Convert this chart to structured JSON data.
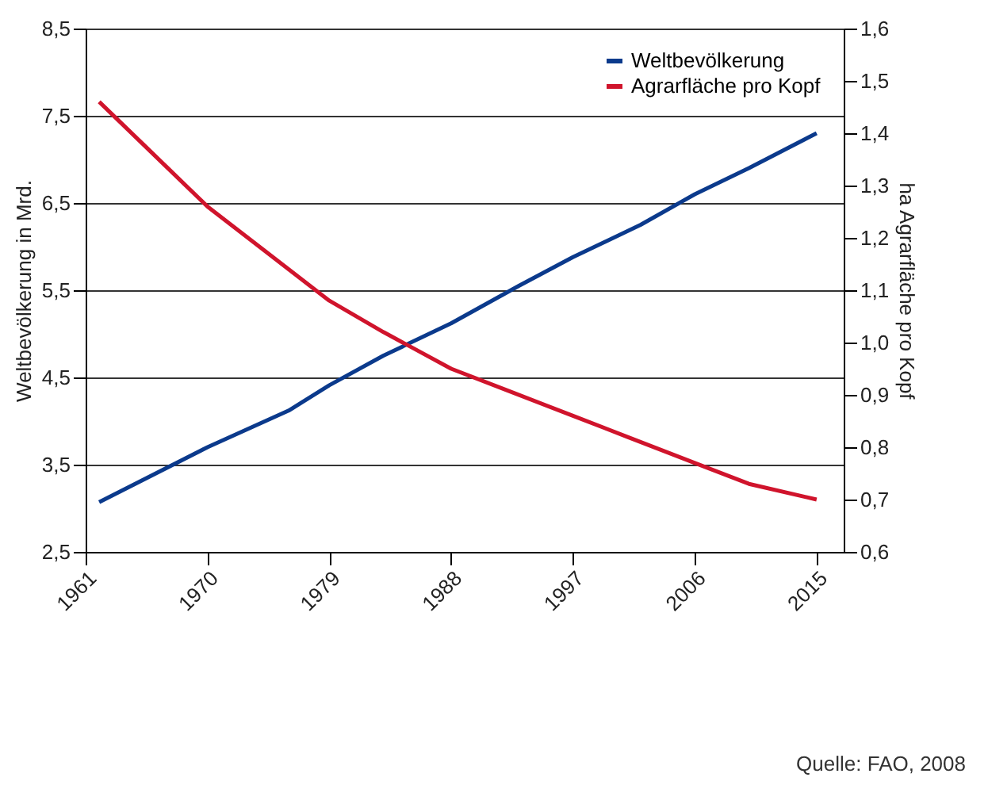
{
  "chart_data": {
    "type": "line",
    "ylabel": "Weltbevölkerung in Mrd.",
    "y2label": "ha Agrarfläche pro Kopf",
    "xlim": [
      1961,
      2017
    ],
    "xticks": [
      1961,
      1970,
      1979,
      1988,
      1997,
      2006,
      2015
    ],
    "ylim": [
      2.5,
      8.5
    ],
    "yticks": [
      {
        "value": 2.5,
        "label": "2,5"
      },
      {
        "value": 3.5,
        "label": "3,5"
      },
      {
        "value": 4.5,
        "label": "4,5"
      },
      {
        "value": 5.5,
        "label": "5,5"
      },
      {
        "value": 6.5,
        "label": "6,5"
      },
      {
        "value": 7.5,
        "label": "7,5"
      },
      {
        "value": 8.5,
        "label": "8,5"
      }
    ],
    "y2lim": [
      0.6,
      1.6
    ],
    "y2ticks": [
      {
        "value": 0.6,
        "label": "0,6"
      },
      {
        "value": 0.7,
        "label": "0,7"
      },
      {
        "value": 0.8,
        "label": "0,8"
      },
      {
        "value": 0.9,
        "label": "0,9"
      },
      {
        "value": 1.0,
        "label": "1,0"
      },
      {
        "value": 1.1,
        "label": "1,1"
      },
      {
        "value": 1.2,
        "label": "1,2"
      },
      {
        "value": 1.3,
        "label": "1,3"
      },
      {
        "value": 1.4,
        "label": "1,4"
      },
      {
        "value": 1.5,
        "label": "1,5"
      },
      {
        "value": 1.6,
        "label": "1,6"
      }
    ],
    "grid": "y",
    "legend": "top right",
    "annotations": [
      "Quelle: FAO, 2008"
    ],
    "series": [
      {
        "name": "Weltbevölkerung",
        "color": "#0b3a8c",
        "x": [
          1962,
          1970,
          1976,
          1979,
          1983,
          1988,
          1993,
          1997,
          2002,
          2006,
          2010,
          2015
        ],
        "values": [
          3.07,
          3.7,
          4.12,
          4.41,
          4.75,
          5.12,
          5.55,
          5.88,
          6.25,
          6.6,
          6.9,
          7.3
        ]
      },
      {
        "name": "Agrarfläche pro Kopf",
        "color": "#d0142c",
        "axis": "y2",
        "x": [
          1962,
          1966,
          1970,
          1974,
          1979,
          1983,
          1988,
          1992,
          1997,
          2001,
          2006,
          2010,
          2015
        ],
        "values": [
          1.46,
          1.36,
          1.26,
          1.18,
          1.08,
          1.02,
          0.95,
          0.91,
          0.86,
          0.82,
          0.77,
          0.73,
          0.7
        ]
      }
    ]
  }
}
